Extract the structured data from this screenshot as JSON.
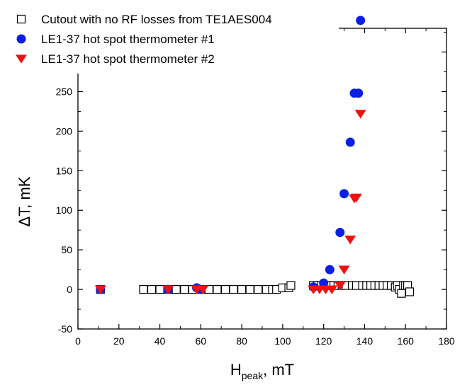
{
  "chart_data": {
    "type": "scatter",
    "xlabel_main": "H",
    "xlabel_sub": "peak",
    "xlabel_unit": ", mT",
    "ylabel": "ΔT, mK",
    "xlim": [
      0,
      180
    ],
    "ylim": [
      -50,
      330
    ],
    "xticks": [
      0,
      20,
      40,
      60,
      80,
      100,
      120,
      140,
      160,
      180
    ],
    "yticks": [
      -50,
      0,
      50,
      100,
      150,
      200,
      250,
      300
    ],
    "grid": false,
    "legend_position": "top-left",
    "series": [
      {
        "name": "Cutout with no RF losses from TE1AES004",
        "marker": "open-square",
        "color": "#000000",
        "x": [
          11,
          32,
          36,
          40,
          44,
          48,
          52,
          56,
          60,
          64,
          68,
          72,
          76,
          80,
          84,
          88,
          92,
          95,
          97,
          100,
          103,
          104,
          115,
          117,
          119,
          121,
          123,
          125,
          127,
          129,
          131,
          134,
          136,
          139,
          141,
          143,
          145,
          147,
          149,
          151,
          153,
          155,
          156,
          157,
          158,
          159,
          160,
          161,
          162
        ],
        "y": [
          0,
          0,
          0,
          0,
          0,
          0,
          0,
          0,
          0,
          0,
          0,
          0,
          0,
          0,
          0,
          0,
          0,
          0,
          0,
          2,
          2,
          5,
          5,
          5,
          5,
          5,
          5,
          5,
          5,
          5,
          5,
          5,
          5,
          5,
          5,
          5,
          5,
          5,
          5,
          5,
          5,
          3,
          5,
          0,
          -5,
          5,
          5,
          5,
          -3
        ]
      },
      {
        "name": "LE1-37 hot spot thermometer #1",
        "marker": "circle",
        "color": "#0a1fe6",
        "x": [
          11,
          44,
          58,
          60,
          115,
          120,
          123,
          128,
          130,
          133,
          135,
          137,
          138
        ],
        "y": [
          0,
          0,
          2,
          0,
          3,
          8,
          25,
          72,
          121,
          186,
          248,
          248,
          340
        ]
      },
      {
        "name": "LE1-37 hot spot thermometer #2",
        "marker": "down-triangle",
        "color": "#f01010",
        "x": [
          11,
          44,
          58,
          61,
          115,
          118,
          121,
          124,
          128,
          130,
          133,
          135,
          136,
          138
        ],
        "y": [
          0,
          0,
          0,
          0,
          0,
          0,
          0,
          0,
          5,
          25,
          63,
          115,
          116,
          222
        ]
      }
    ]
  }
}
